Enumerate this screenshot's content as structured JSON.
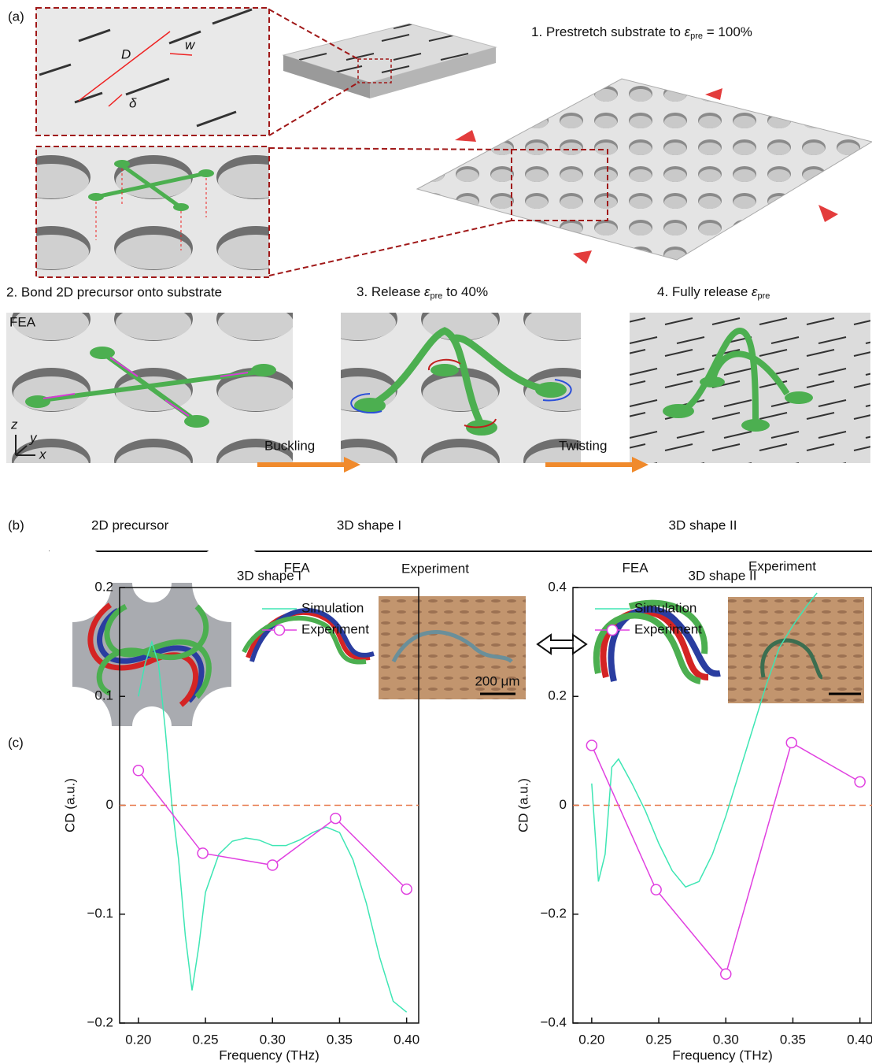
{
  "panel_a": {
    "label": "(a)",
    "dim_D": "D",
    "dim_w": "w",
    "dim_delta": "δ",
    "step1": {
      "text": "1. Prestretch substrate to",
      "symbol": "ε",
      "subscript": "pre",
      "rest": "= 100%"
    },
    "step2": "2. Bond 2D precursor onto substrate",
    "fea": "FEA",
    "axes": {
      "z": "z",
      "y": "y",
      "x": "x"
    },
    "step3": {
      "text": "3. Release",
      "symbol": "ε",
      "subscript": "pre",
      "rest": "to 40%"
    },
    "step4": {
      "text": "4. Fully release",
      "symbol": "ε",
      "subscript": "pre"
    },
    "arrow1": "Buckling",
    "arrow2": "Twisting"
  },
  "panel_b": {
    "label": "(b)",
    "precursor": "2D precursor",
    "shape1": "3D shape I",
    "shape2": "3D shape II",
    "fea1": "FEA",
    "exp1": "Experiment",
    "fea2": "FEA",
    "exp2": "Experiment",
    "scale_bar": "200 μm"
  },
  "panel_c": {
    "label": "(c)"
  },
  "chart_data": [
    {
      "type": "line",
      "title": "3D shape I",
      "x_label": "Frequency (THz)",
      "y_label": "CD (a.u.)",
      "xlim": [
        0.186,
        0.409
      ],
      "ylim": [
        -0.2,
        0.2
      ],
      "xticks": [
        {
          "value": 0.2,
          "label": "0.20"
        },
        {
          "value": 0.25,
          "label": "0.25"
        },
        {
          "value": 0.3,
          "label": "0.30"
        },
        {
          "value": 0.35,
          "label": "0.35"
        },
        {
          "value": 0.4,
          "label": "0.40"
        }
      ],
      "yticks": [
        {
          "value": -0.2,
          "label": "−0.2"
        },
        {
          "value": -0.1,
          "label": "−0.1"
        },
        0,
        0.1,
        0.2
      ],
      "reference_line": 0,
      "reference_color": "#e8784a",
      "legend": "upper center",
      "series": [
        {
          "name": "Simulation",
          "color": "#3ee6b4",
          "x": [
            0.2,
            0.205,
            0.21,
            0.215,
            0.22,
            0.225,
            0.23,
            0.235,
            0.24,
            0.245,
            0.25,
            0.26,
            0.27,
            0.28,
            0.29,
            0.3,
            0.31,
            0.32,
            0.33,
            0.34,
            0.35,
            0.36,
            0.37,
            0.38,
            0.39,
            0.4
          ],
          "values": [
            0.1,
            0.13,
            0.15,
            0.13,
            0.07,
            0.0,
            -0.05,
            -0.12,
            -0.17,
            -0.13,
            -0.08,
            -0.045,
            -0.033,
            -0.03,
            -0.032,
            -0.037,
            -0.037,
            -0.032,
            -0.025,
            -0.02,
            -0.025,
            -0.05,
            -0.09,
            -0.14,
            -0.18,
            -0.19
          ]
        },
        {
          "name": "Experiment",
          "color": "#e040e0",
          "marker": "circle",
          "x": [
            0.2,
            0.248,
            0.3,
            0.347,
            0.4
          ],
          "values": [
            0.032,
            -0.044,
            -0.055,
            -0.012,
            -0.077
          ]
        }
      ]
    },
    {
      "type": "line",
      "title": "3D shape II",
      "x_label": "Frequency (THz)",
      "y_label": "CD (a.u.)",
      "xlim": [
        0.186,
        0.409
      ],
      "ylim": [
        -0.4,
        0.4
      ],
      "xticks": [
        {
          "value": 0.2,
          "label": "0.20"
        },
        {
          "value": 0.25,
          "label": "0.25"
        },
        {
          "value": 0.3,
          "label": "0.30"
        },
        {
          "value": 0.35,
          "label": "0.35"
        },
        {
          "value": 0.4,
          "label": "0.40"
        }
      ],
      "yticks": [
        {
          "value": -0.4,
          "label": "−0.4"
        },
        {
          "value": -0.2,
          "label": "−0.2"
        },
        0,
        0.2,
        0.4
      ],
      "reference_line": 0,
      "reference_color": "#e8784a",
      "legend": "upper left",
      "series": [
        {
          "name": "Simulation",
          "color": "#3ee6b4",
          "x": [
            0.2,
            0.205,
            0.21,
            0.215,
            0.22,
            0.23,
            0.24,
            0.25,
            0.26,
            0.27,
            0.28,
            0.29,
            0.3,
            0.31,
            0.32,
            0.33,
            0.34,
            0.35,
            0.36,
            0.368
          ],
          "values": [
            0.04,
            -0.14,
            -0.09,
            0.07,
            0.085,
            0.04,
            -0.01,
            -0.07,
            -0.12,
            -0.15,
            -0.14,
            -0.09,
            -0.02,
            0.06,
            0.14,
            0.22,
            0.29,
            0.33,
            0.365,
            0.39
          ]
        },
        {
          "name": "Experiment",
          "color": "#e040e0",
          "marker": "circle",
          "x": [
            0.2,
            0.248,
            0.3,
            0.349,
            0.4
          ],
          "values": [
            0.11,
            -0.155,
            -0.31,
            0.115,
            0.043
          ]
        }
      ]
    }
  ]
}
